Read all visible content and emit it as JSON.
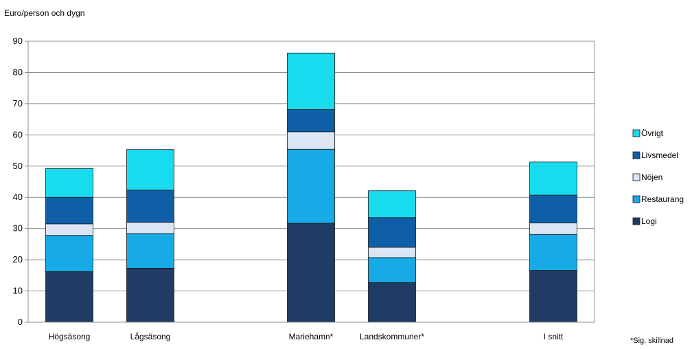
{
  "chart_data": {
    "type": "bar",
    "stacked": true,
    "title": "",
    "ylabel": "Euro/person och dygn",
    "xlabel": "",
    "ylim": [
      0,
      90
    ],
    "yticks": [
      0,
      10,
      20,
      30,
      40,
      50,
      60,
      70,
      80,
      90
    ],
    "grid": true,
    "legend_position": "right",
    "categories": [
      "Högsäsong",
      "Lågsäsong",
      "Mariehamn*",
      "Landskommuner*",
      "I snitt"
    ],
    "series": [
      {
        "name": "Logi",
        "color": "#203c64",
        "values": [
          16.2,
          17.3,
          31.7,
          12.7,
          16.6
        ]
      },
      {
        "name": "Restaurang",
        "color": "#16aae6",
        "values": [
          11.6,
          11.1,
          23.7,
          8.0,
          11.5
        ]
      },
      {
        "name": "Nöjen",
        "color": "#dbe5f3",
        "values": [
          3.7,
          3.6,
          5.6,
          3.3,
          3.7
        ]
      },
      {
        "name": "Livsmedel",
        "color": "#0f5fa8",
        "values": [
          8.5,
          10.3,
          7.1,
          9.5,
          8.9
        ]
      },
      {
        "name": "Övrigt",
        "color": "#18dcee",
        "values": [
          9.2,
          13.0,
          18.1,
          8.6,
          10.6
        ]
      }
    ],
    "footnote": "*Sig. skillnad"
  }
}
